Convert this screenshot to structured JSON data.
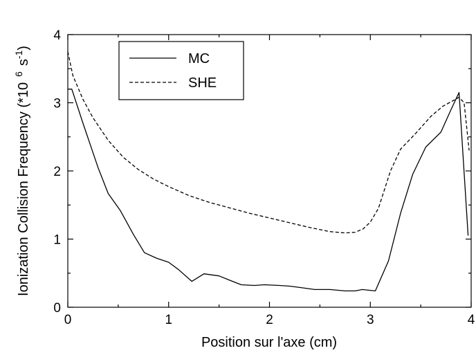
{
  "chart_data": {
    "type": "line",
    "xlabel": "Position sur l'axe (cm)",
    "ylabel_prefix": "Ionization Collision Frequency (*10",
    "ylabel_exponent": "6",
    "ylabel_unit": "s",
    "ylabel_unit_exponent": "-1",
    "ylabel_suffix": ")",
    "xlim": [
      0,
      4
    ],
    "ylim": [
      0,
      4
    ],
    "x_ticks": [
      "0",
      "1",
      "2",
      "3",
      "4"
    ],
    "y_ticks": [
      "0",
      "1",
      "2",
      "3",
      "4"
    ],
    "grid": false,
    "legend_position": "top-left",
    "series": [
      {
        "name": "MC",
        "style": "solid",
        "color": "#000000",
        "x": [
          0.0,
          0.04,
          0.15,
          0.3,
          0.4,
          0.52,
          0.65,
          0.76,
          0.88,
          1.0,
          1.1,
          1.23,
          1.35,
          1.5,
          1.6,
          1.72,
          1.85,
          1.95,
          2.1,
          2.2,
          2.3,
          2.45,
          2.6,
          2.75,
          2.85,
          2.92,
          3.05,
          3.18,
          3.3,
          3.42,
          3.55,
          3.7,
          3.8,
          3.88,
          3.97
        ],
        "y": [
          3.2,
          3.2,
          2.7,
          2.05,
          1.67,
          1.42,
          1.07,
          0.8,
          0.72,
          0.66,
          0.55,
          0.38,
          0.49,
          0.46,
          0.4,
          0.33,
          0.32,
          0.33,
          0.32,
          0.31,
          0.29,
          0.26,
          0.26,
          0.24,
          0.24,
          0.26,
          0.24,
          0.68,
          1.38,
          1.95,
          2.35,
          2.57,
          2.9,
          3.15,
          1.05
        ]
      },
      {
        "name": "SHE",
        "style": "dashed",
        "color": "#000000",
        "x": [
          0.0,
          0.05,
          0.15,
          0.25,
          0.4,
          0.55,
          0.7,
          0.85,
          1.0,
          1.2,
          1.4,
          1.6,
          1.8,
          2.0,
          2.2,
          2.4,
          2.6,
          2.75,
          2.85,
          2.93,
          3.0,
          3.08,
          3.2,
          3.3,
          3.45,
          3.6,
          3.72,
          3.82,
          3.88,
          3.93,
          3.98
        ],
        "y": [
          3.75,
          3.4,
          3.05,
          2.78,
          2.45,
          2.2,
          2.02,
          1.88,
          1.77,
          1.64,
          1.54,
          1.46,
          1.38,
          1.31,
          1.24,
          1.17,
          1.11,
          1.09,
          1.1,
          1.15,
          1.25,
          1.45,
          2.0,
          2.32,
          2.55,
          2.8,
          2.95,
          3.03,
          3.08,
          3.0,
          2.3
        ]
      }
    ]
  }
}
